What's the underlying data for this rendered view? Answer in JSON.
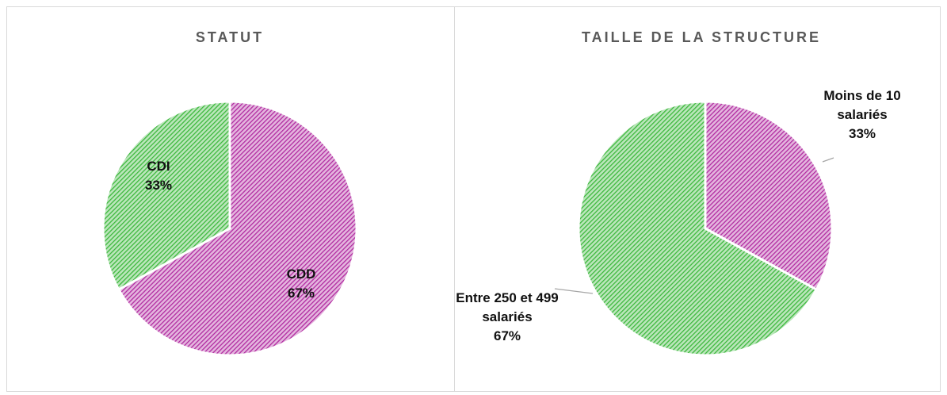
{
  "chart_data": [
    {
      "type": "pie",
      "title": "STATUT",
      "categories": [
        "CDD",
        "CDI"
      ],
      "values": [
        67,
        33
      ],
      "value_labels": [
        "67%",
        "33%"
      ],
      "colors": [
        "#b02aa0",
        "#3cb83c"
      ]
    },
    {
      "type": "pie",
      "title": "TAILLE DE LA STRUCTURE",
      "categories": [
        "Moins de 10 salariés",
        "Entre 250 et 499 salariés"
      ],
      "values": [
        33,
        67
      ],
      "value_labels": [
        "33%",
        "67%"
      ],
      "colors": [
        "#b02aa0",
        "#3cb83c"
      ]
    }
  ]
}
